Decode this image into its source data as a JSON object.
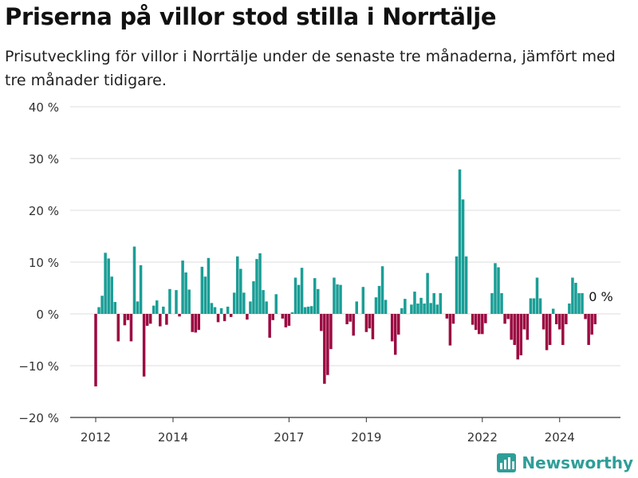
{
  "title": "Priserna på villor stod stilla i Norrtälje",
  "subtitle": "Prisutveckling för villor i Norrtälje under de senaste tre månaderna, jämfört med tre månader tidigare.",
  "brand": "Newsworthy",
  "colors": {
    "positive": "#1a9e96",
    "negative": "#9b0a41",
    "grid": "#dddddd",
    "axis": "#333333",
    "brand": "#2f9e98"
  },
  "chart_data": {
    "type": "bar",
    "title": "Priserna på villor stod stilla i Norrtälje",
    "subtitle": "Prisutveckling för villor i Norrtälje under de senaste tre månaderna, jämfört med tre månader tidigare.",
    "xlabel": "",
    "ylabel": "",
    "ylim": [
      -20,
      40
    ],
    "yticks": [
      -20,
      -10,
      0,
      10,
      20,
      30,
      40
    ],
    "ytick_labels": [
      "−20 %",
      "−10 %",
      "0 %",
      "10 %",
      "20 %",
      "30 %",
      "40 %"
    ],
    "xticks": [
      "2012",
      "2014",
      "2017",
      "2019",
      "2022",
      "2024"
    ],
    "start": "2012-01",
    "last_label": "0 %",
    "grid": true,
    "values": [
      -14,
      1.3,
      3.5,
      11.8,
      10.7,
      7.2,
      2.3,
      -5.3,
      0,
      -2.2,
      -1.2,
      -5.3,
      13,
      2.4,
      9.4,
      -12.1,
      -2.3,
      -1.9,
      1.6,
      2.6,
      -2.4,
      1.4,
      -2.1,
      4.8,
      0,
      4.6,
      -0.5,
      10.3,
      8,
      4.7,
      -3.5,
      -3.6,
      -3.1,
      9.1,
      7.2,
      10.8,
      2.1,
      1.3,
      -1.6,
      1.1,
      -1.4,
      1.4,
      -0.6,
      4.1,
      11.1,
      8.7,
      4.1,
      -1.1,
      2.4,
      6.3,
      10.6,
      11.7,
      4.6,
      2.4,
      -4.6,
      -1.2,
      3.8,
      0,
      -0.9,
      -2.6,
      -2.3,
      0.3,
      7,
      5.6,
      8.9,
      1.3,
      1.4,
      1.5,
      6.9,
      4.8,
      -3.3,
      -13.5,
      -11.8,
      -6.8,
      7,
      5.7,
      5.6,
      0,
      -2,
      -1.5,
      -4.2,
      2.4,
      0,
      5.2,
      -3.5,
      -2.8,
      -4.9,
      3.2,
      5.4,
      9.2,
      2.7,
      0,
      -5.3,
      -7.9,
      -4,
      1.1,
      2.9,
      0,
      1.8,
      4.3,
      2,
      3.1,
      2,
      7.9,
      2.1,
      4,
      1.8,
      4,
      0,
      -0.9,
      -6.1,
      -1.9,
      11.1,
      27.9,
      22.1,
      11.1,
      0,
      -2.1,
      -3.1,
      -3.9,
      -3.9,
      -1.8,
      0,
      4,
      9.8,
      9,
      4,
      -1.9,
      -1,
      -5,
      -6,
      -8.8,
      -8,
      -3,
      -5,
      3,
      3,
      7,
      3,
      -3,
      -7,
      -6,
      1,
      -2,
      -3,
      -6,
      -2,
      2,
      7,
      6,
      4,
      4,
      -1,
      -6,
      -4,
      -2,
      0
    ]
  }
}
